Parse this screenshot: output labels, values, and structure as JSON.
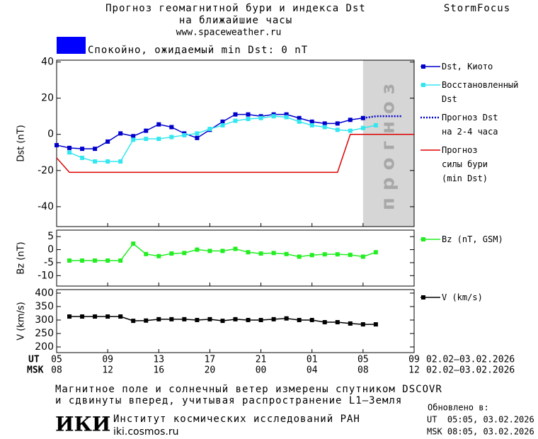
{
  "header": {
    "title": "Прогноз геомагнитной бури и индекса Dst",
    "subtitle": "на ближайшие часы",
    "url": "www.spaceweather.ru",
    "brand": "StormFocus"
  },
  "status": {
    "text": "Спокойно, ожидаемый min Dst: 0 nT",
    "color": "#0000ff"
  },
  "chart_data": [
    {
      "type": "line",
      "ylabel": "Dst (nT)",
      "xlim": [
        0,
        28
      ],
      "ylim": [
        -51,
        41
      ],
      "yticks": [
        -40,
        -20,
        0,
        20,
        40
      ],
      "forecast_zone": [
        24,
        28
      ],
      "forecast_zone_label": "прогноз",
      "series": [
        {
          "name": "Dst, Киото",
          "color": "#0000cc",
          "marker": true,
          "x": [
            0,
            1,
            2,
            3,
            4,
            5,
            6,
            7,
            8,
            9,
            10,
            11,
            12,
            13,
            14,
            15,
            16,
            17,
            18,
            19,
            20,
            21,
            22,
            23,
            24
          ],
          "values": [
            -6,
            -7.5,
            -8,
            -8,
            -4,
            0.5,
            -1,
            2,
            5.5,
            4,
            0.5,
            -2,
            2.5,
            7,
            11,
            11,
            10,
            11,
            11,
            9,
            7,
            6,
            6,
            8,
            9
          ]
        },
        {
          "name": "Восстановленный\nDst",
          "color": "#33e6f0",
          "marker": true,
          "x": [
            1,
            2,
            3,
            4,
            5,
            6,
            7,
            8,
            9,
            10,
            11,
            12,
            13,
            14,
            15,
            16,
            17,
            18,
            19,
            20,
            21,
            22,
            23,
            24,
            25
          ],
          "values": [
            -10,
            -13,
            -15,
            -15,
            -15,
            -3,
            -2.5,
            -2.5,
            -1.5,
            -0.5,
            0.5,
            3,
            5,
            7.5,
            8.5,
            9,
            10,
            9.5,
            7,
            5,
            4,
            2.5,
            2,
            3.5,
            5
          ]
        },
        {
          "name": "Прогноз Dst\nна 2-4 часа",
          "color": "#0000cc",
          "dash": true,
          "x": [
            24,
            25,
            26,
            27
          ],
          "values": [
            9,
            10,
            10,
            10
          ]
        },
        {
          "name": "Прогноз\nсилы бури\n(min Dst)",
          "color": "#dd0000",
          "x": [
            0,
            1,
            22,
            23,
            28
          ],
          "values": [
            -13,
            -21,
            -21,
            0,
            0
          ]
        }
      ]
    },
    {
      "type": "line",
      "ylabel": "Bz (nT)",
      "xlim": [
        0,
        28
      ],
      "ylim": [
        -14,
        7.5
      ],
      "yticks": [
        -10,
        -5,
        0,
        5
      ],
      "series": [
        {
          "name": "Bz (nT, GSM)",
          "color": "#22ee22",
          "marker": true,
          "x": [
            1,
            2,
            3,
            4,
            5,
            6,
            7,
            8,
            9,
            10,
            11,
            12,
            13,
            14,
            15,
            16,
            17,
            18,
            19,
            20,
            21,
            22,
            23,
            24,
            25
          ],
          "values": [
            -4.2,
            -4.2,
            -4.2,
            -4.2,
            -4.2,
            2.3,
            -1.7,
            -2.5,
            -1.5,
            -1.3,
            0,
            -0.5,
            -0.5,
            0.3,
            -1,
            -1.5,
            -1.3,
            -1.7,
            -2.7,
            -2.1,
            -1.8,
            -1.8,
            -2,
            -2.7,
            -1
          ]
        }
      ]
    },
    {
      "type": "line",
      "ylabel": "V (km/s)",
      "xlim": [
        0,
        28
      ],
      "ylim": [
        179,
        413
      ],
      "yticks": [
        200,
        250,
        300,
        350,
        400
      ],
      "xaxis_label": "UT",
      "x2axis_label": "MSK",
      "xlabel": "02.02–03.02.2026",
      "x2label": "02.02–03.02.2026",
      "xticks": [
        {
          "value": 0,
          "label": "05"
        },
        {
          "value": 4,
          "label": "09"
        },
        {
          "value": 8,
          "label": "13"
        },
        {
          "value": 12,
          "label": "17"
        },
        {
          "value": 16,
          "label": "21"
        },
        {
          "value": 20,
          "label": "01"
        },
        {
          "value": 24,
          "label": "05"
        },
        {
          "value": 28,
          "label": "09"
        }
      ],
      "x2ticks": [
        {
          "value": 0,
          "label": "08"
        },
        {
          "value": 4,
          "label": "12"
        },
        {
          "value": 8,
          "label": "16"
        },
        {
          "value": 12,
          "label": "20"
        },
        {
          "value": 16,
          "label": "00"
        },
        {
          "value": 20,
          "label": "04"
        },
        {
          "value": 24,
          "label": "08"
        },
        {
          "value": 28,
          "label": "12"
        }
      ],
      "series": [
        {
          "name": "V (km/s)",
          "color": "#000000",
          "marker": true,
          "x": [
            1,
            2,
            3,
            4,
            5,
            6,
            7,
            8,
            9,
            10,
            11,
            12,
            13,
            14,
            15,
            16,
            17,
            18,
            19,
            20,
            21,
            22,
            23,
            24,
            25
          ],
          "values": [
            313,
            313,
            313,
            313,
            313,
            297,
            298,
            303,
            303,
            303,
            300,
            303,
            297,
            303,
            300,
            300,
            303,
            306,
            300,
            300,
            292,
            292,
            287,
            284,
            284
          ]
        }
      ]
    }
  ],
  "footer": {
    "note_1": "Магнитное поле и солнечный ветер измерены спутником DSCOVR",
    "note_2": "и сдвинуты вперед, учитывая распространение L1–Земля",
    "logo": "ИКИ",
    "institute": "Институт космических исследований РАН",
    "site": "iki.cosmos.ru",
    "updated": "Обновлено в:",
    "updated_ut": "UT  05:05, 03.02.2026",
    "updated_msk": "MSK 08:05, 03.02.2026"
  }
}
